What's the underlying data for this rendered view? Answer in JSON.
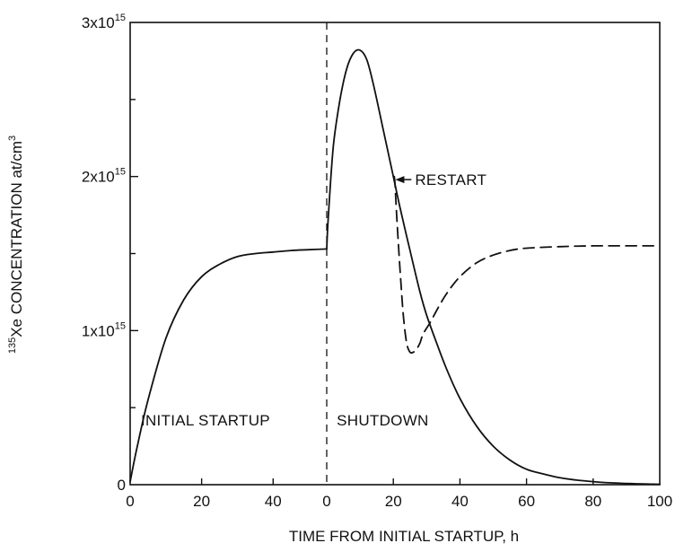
{
  "chart_data": {
    "type": "line",
    "xlabel": "TIME FROM INITIAL STARTUP, h",
    "ylabel": {
      "superscript": "135",
      "main": "Xe CONCENTRATION at/cm",
      "unit_power": "3"
    },
    "ylim": [
      0,
      3000000000000000.0
    ],
    "y_ticks": [
      {
        "value": 0,
        "label": "0"
      },
      {
        "value": 1000000000000000.0,
        "base": "1x10",
        "exp": "15"
      },
      {
        "value": 2000000000000000.0,
        "base": "2x10",
        "exp": "15"
      },
      {
        "value": 3000000000000000.0,
        "base": "3x10",
        "exp": "15"
      }
    ],
    "y_minor_ticks": [
      500000000000000.0,
      1500000000000000.0,
      2500000000000000.0
    ],
    "x_segments": [
      {
        "name": "INITIAL STARTUP",
        "xlim": [
          0,
          55
        ],
        "ticks": [
          "0",
          "20",
          "40"
        ],
        "tick_values": [
          0,
          20,
          40
        ]
      },
      {
        "name": "SHUTDOWN",
        "xlim": [
          0,
          100
        ],
        "ticks": [
          "0",
          "20",
          "40",
          "60",
          "80",
          "100"
        ],
        "tick_values": [
          0,
          20,
          40,
          60,
          80,
          100
        ]
      }
    ],
    "grid": false,
    "series": [
      {
        "segment": 0,
        "style": "solid",
        "x": [
          0,
          2,
          5,
          10,
          15,
          20,
          25,
          30,
          35,
          40,
          45,
          50,
          55
        ],
        "y": [
          20000000000000.0,
          250000000000000.0,
          550000000000000.0,
          950000000000000.0,
          1200000000000000.0,
          1350000000000000.0,
          1430000000000000.0,
          1480000000000000.0,
          1500000000000000.0,
          1510000000000000.0,
          1520000000000000.0,
          1525000000000000.0,
          1530000000000000.0
        ]
      },
      {
        "segment": 1,
        "style": "solid",
        "x": [
          0,
          0.5,
          2,
          4,
          6,
          8,
          10,
          12,
          14,
          17,
          20,
          22,
          25,
          28,
          30,
          33,
          36,
          40,
          45,
          50,
          55,
          60,
          65,
          70,
          75,
          80,
          85,
          90,
          95,
          100
        ],
        "y": [
          1530000000000000.0,
          1750000000000000.0,
          2200000000000000.0,
          2500000000000000.0,
          2700000000000000.0,
          2800000000000000.0,
          2820000000000000.0,
          2760000000000000.0,
          2600000000000000.0,
          2300000000000000.0,
          2000000000000000.0,
          1800000000000000.0,
          1520000000000000.0,
          1250000000000000.0,
          1100000000000000.0,
          920000000000000.0,
          750000000000000.0,
          560000000000000.0,
          380000000000000.0,
          250000000000000.0,
          160000000000000.0,
          100000000000000.0,
          70000000000000.0,
          45000000000000.0,
          30000000000000.0,
          20000000000000.0,
          12000000000000.0,
          8000000000000.0,
          5000000000000.0,
          3000000000000.0
        ]
      },
      {
        "segment": 1,
        "style": "dashed",
        "x": [
          20.3,
          20.5,
          21,
          22,
          23,
          24,
          25,
          26,
          27,
          28,
          29,
          31,
          33,
          36,
          40,
          45,
          50,
          55,
          60,
          70,
          80,
          90,
          100
        ],
        "y": [
          2000000000000000.0,
          1950000000000000.0,
          1750000000000000.0,
          1400000000000000.0,
          1100000000000000.0,
          920000000000000.0,
          860000000000000.0,
          860000000000000.0,
          880000000000000.0,
          920000000000000.0,
          980000000000000.0,
          1050000000000000.0,
          1130000000000000.0,
          1240000000000000.0,
          1350000000000000.0,
          1440000000000000.0,
          1490000000000000.0,
          1520000000000000.0,
          1535000000000000.0,
          1545000000000000.0,
          1550000000000000.0,
          1550000000000000.0,
          1550000000000000.0
        ]
      }
    ],
    "annotations": [
      {
        "text": "INITIAL STARTUP",
        "segment": 0,
        "x": 3,
        "y": 420000000000000.0
      },
      {
        "text": "SHUTDOWN",
        "segment": 1,
        "x": 3,
        "y": 420000000000000.0
      },
      {
        "text": "RESTART",
        "segment": 1,
        "x": 26.5,
        "y": 1980000000000000.0,
        "arrow_to": [
          20.6,
          1980000000000000.0
        ]
      }
    ]
  }
}
